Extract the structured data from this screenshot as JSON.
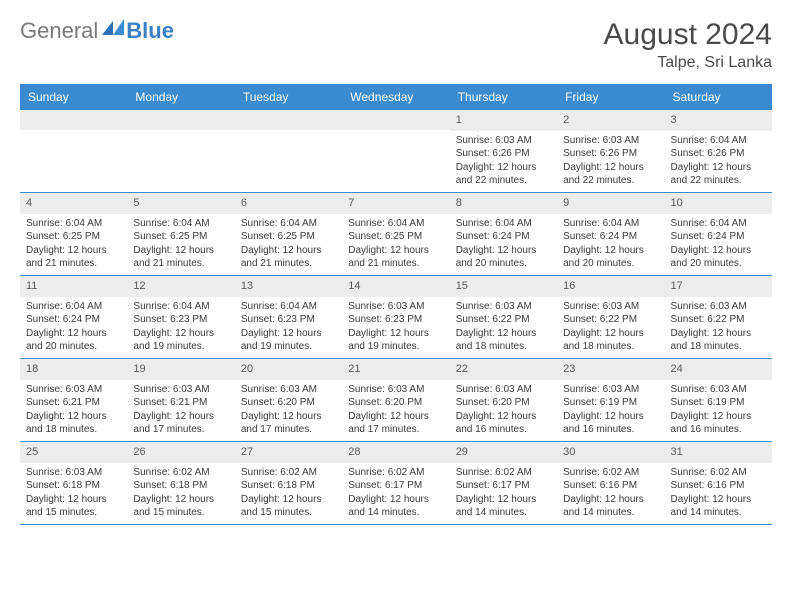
{
  "brand": {
    "part1": "General",
    "part2": "Blue"
  },
  "title": "August 2024",
  "location": "Talpe, Sri Lanka",
  "colors": {
    "header_bg": "#3b8bd0",
    "daynum_bg": "#ececec",
    "rule": "#3b8bd0",
    "text": "#3a3a3a",
    "title_text": "#4a4a4a"
  },
  "weekdays": [
    "Sunday",
    "Monday",
    "Tuesday",
    "Wednesday",
    "Thursday",
    "Friday",
    "Saturday"
  ],
  "weeks": [
    [
      {
        "n": "",
        "sr": "",
        "ss": "",
        "dl": ""
      },
      {
        "n": "",
        "sr": "",
        "ss": "",
        "dl": ""
      },
      {
        "n": "",
        "sr": "",
        "ss": "",
        "dl": ""
      },
      {
        "n": "",
        "sr": "",
        "ss": "",
        "dl": ""
      },
      {
        "n": "1",
        "sr": "Sunrise: 6:03 AM",
        "ss": "Sunset: 6:26 PM",
        "dl": "Daylight: 12 hours and 22 minutes."
      },
      {
        "n": "2",
        "sr": "Sunrise: 6:03 AM",
        "ss": "Sunset: 6:26 PM",
        "dl": "Daylight: 12 hours and 22 minutes."
      },
      {
        "n": "3",
        "sr": "Sunrise: 6:04 AM",
        "ss": "Sunset: 6:26 PM",
        "dl": "Daylight: 12 hours and 22 minutes."
      }
    ],
    [
      {
        "n": "4",
        "sr": "Sunrise: 6:04 AM",
        "ss": "Sunset: 6:25 PM",
        "dl": "Daylight: 12 hours and 21 minutes."
      },
      {
        "n": "5",
        "sr": "Sunrise: 6:04 AM",
        "ss": "Sunset: 6:25 PM",
        "dl": "Daylight: 12 hours and 21 minutes."
      },
      {
        "n": "6",
        "sr": "Sunrise: 6:04 AM",
        "ss": "Sunset: 6:25 PM",
        "dl": "Daylight: 12 hours and 21 minutes."
      },
      {
        "n": "7",
        "sr": "Sunrise: 6:04 AM",
        "ss": "Sunset: 6:25 PM",
        "dl": "Daylight: 12 hours and 21 minutes."
      },
      {
        "n": "8",
        "sr": "Sunrise: 6:04 AM",
        "ss": "Sunset: 6:24 PM",
        "dl": "Daylight: 12 hours and 20 minutes."
      },
      {
        "n": "9",
        "sr": "Sunrise: 6:04 AM",
        "ss": "Sunset: 6:24 PM",
        "dl": "Daylight: 12 hours and 20 minutes."
      },
      {
        "n": "10",
        "sr": "Sunrise: 6:04 AM",
        "ss": "Sunset: 6:24 PM",
        "dl": "Daylight: 12 hours and 20 minutes."
      }
    ],
    [
      {
        "n": "11",
        "sr": "Sunrise: 6:04 AM",
        "ss": "Sunset: 6:24 PM",
        "dl": "Daylight: 12 hours and 20 minutes."
      },
      {
        "n": "12",
        "sr": "Sunrise: 6:04 AM",
        "ss": "Sunset: 6:23 PM",
        "dl": "Daylight: 12 hours and 19 minutes."
      },
      {
        "n": "13",
        "sr": "Sunrise: 6:04 AM",
        "ss": "Sunset: 6:23 PM",
        "dl": "Daylight: 12 hours and 19 minutes."
      },
      {
        "n": "14",
        "sr": "Sunrise: 6:03 AM",
        "ss": "Sunset: 6:23 PM",
        "dl": "Daylight: 12 hours and 19 minutes."
      },
      {
        "n": "15",
        "sr": "Sunrise: 6:03 AM",
        "ss": "Sunset: 6:22 PM",
        "dl": "Daylight: 12 hours and 18 minutes."
      },
      {
        "n": "16",
        "sr": "Sunrise: 6:03 AM",
        "ss": "Sunset: 6:22 PM",
        "dl": "Daylight: 12 hours and 18 minutes."
      },
      {
        "n": "17",
        "sr": "Sunrise: 6:03 AM",
        "ss": "Sunset: 6:22 PM",
        "dl": "Daylight: 12 hours and 18 minutes."
      }
    ],
    [
      {
        "n": "18",
        "sr": "Sunrise: 6:03 AM",
        "ss": "Sunset: 6:21 PM",
        "dl": "Daylight: 12 hours and 18 minutes."
      },
      {
        "n": "19",
        "sr": "Sunrise: 6:03 AM",
        "ss": "Sunset: 6:21 PM",
        "dl": "Daylight: 12 hours and 17 minutes."
      },
      {
        "n": "20",
        "sr": "Sunrise: 6:03 AM",
        "ss": "Sunset: 6:20 PM",
        "dl": "Daylight: 12 hours and 17 minutes."
      },
      {
        "n": "21",
        "sr": "Sunrise: 6:03 AM",
        "ss": "Sunset: 6:20 PM",
        "dl": "Daylight: 12 hours and 17 minutes."
      },
      {
        "n": "22",
        "sr": "Sunrise: 6:03 AM",
        "ss": "Sunset: 6:20 PM",
        "dl": "Daylight: 12 hours and 16 minutes."
      },
      {
        "n": "23",
        "sr": "Sunrise: 6:03 AM",
        "ss": "Sunset: 6:19 PM",
        "dl": "Daylight: 12 hours and 16 minutes."
      },
      {
        "n": "24",
        "sr": "Sunrise: 6:03 AM",
        "ss": "Sunset: 6:19 PM",
        "dl": "Daylight: 12 hours and 16 minutes."
      }
    ],
    [
      {
        "n": "25",
        "sr": "Sunrise: 6:03 AM",
        "ss": "Sunset: 6:18 PM",
        "dl": "Daylight: 12 hours and 15 minutes."
      },
      {
        "n": "26",
        "sr": "Sunrise: 6:02 AM",
        "ss": "Sunset: 6:18 PM",
        "dl": "Daylight: 12 hours and 15 minutes."
      },
      {
        "n": "27",
        "sr": "Sunrise: 6:02 AM",
        "ss": "Sunset: 6:18 PM",
        "dl": "Daylight: 12 hours and 15 minutes."
      },
      {
        "n": "28",
        "sr": "Sunrise: 6:02 AM",
        "ss": "Sunset: 6:17 PM",
        "dl": "Daylight: 12 hours and 14 minutes."
      },
      {
        "n": "29",
        "sr": "Sunrise: 6:02 AM",
        "ss": "Sunset: 6:17 PM",
        "dl": "Daylight: 12 hours and 14 minutes."
      },
      {
        "n": "30",
        "sr": "Sunrise: 6:02 AM",
        "ss": "Sunset: 6:16 PM",
        "dl": "Daylight: 12 hours and 14 minutes."
      },
      {
        "n": "31",
        "sr": "Sunrise: 6:02 AM",
        "ss": "Sunset: 6:16 PM",
        "dl": "Daylight: 12 hours and 14 minutes."
      }
    ]
  ]
}
